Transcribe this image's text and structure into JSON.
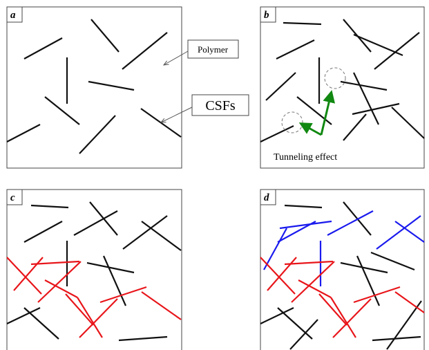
{
  "panels": [
    {
      "label": "a"
    },
    {
      "label": "b",
      "annotation": "Tunneling effect"
    },
    {
      "label": "c"
    },
    {
      "label": "d"
    }
  ],
  "callouts": {
    "polymer": "Polymer",
    "csfs": "CSFs"
  }
}
